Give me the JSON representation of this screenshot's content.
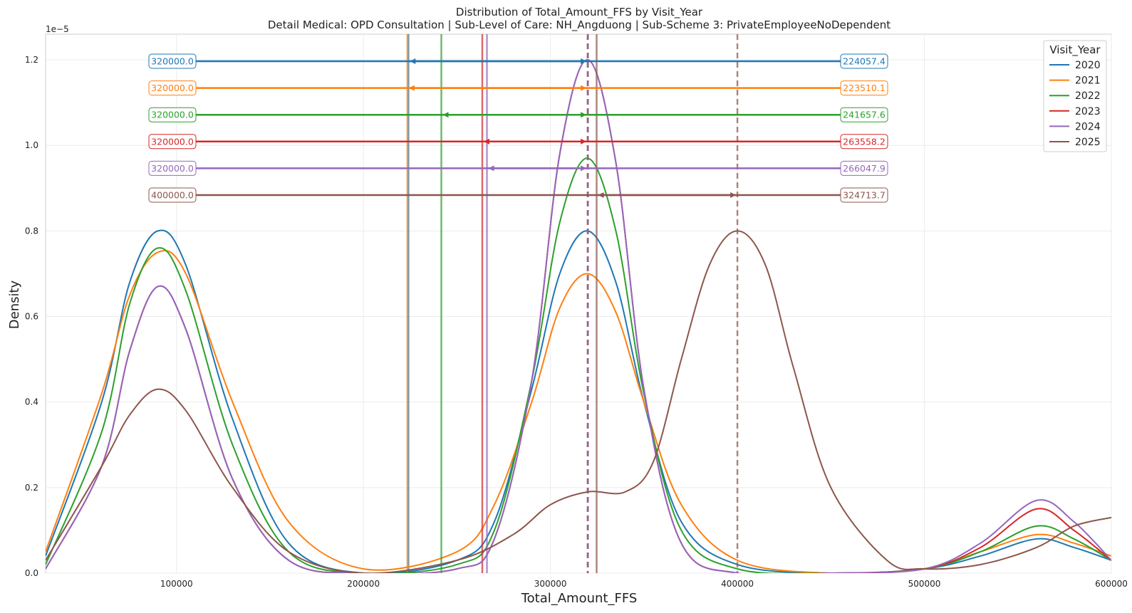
{
  "chart_data": {
    "type": "line",
    "title": "Distribution of Total_Amount_FFS by Visit_Year",
    "subtitle": "Detail Medical: OPD Consultation | Sub-Level of Care: NH_Angduong | Sub-Scheme 3: PrivateEmployeeNoDependent",
    "xlabel": "Total_Amount_FFS",
    "ylabel": "Density",
    "y_scale_label": "1e−5",
    "xlim": [
      30000,
      600000
    ],
    "ylim": [
      0,
      1.26
    ],
    "x_ticks": [
      100000,
      200000,
      300000,
      400000,
      500000,
      600000
    ],
    "x_tick_labels": [
      "100000",
      "200000",
      "300000",
      "400000",
      "500000",
      "600000"
    ],
    "y_ticks": [
      0.0,
      0.2,
      0.4,
      0.6,
      0.8,
      1.0,
      1.2
    ],
    "y_tick_labels": [
      "0.0",
      "0.2",
      "0.4",
      "0.6",
      "0.8",
      "1.0",
      "1.2"
    ],
    "grid": true,
    "legend": {
      "title": "Visit_Year",
      "placement": "top-right"
    },
    "series": [
      {
        "name": "2020",
        "color": "#1f77b4",
        "mean": 224057.4,
        "median": 320000.0,
        "mean_label": "224057.4",
        "median_label": "320000.0",
        "curve_x": [
          30000,
          60000,
          75000,
          90000,
          105000,
          130000,
          160000,
          200000,
          250000,
          270000,
          290000,
          305000,
          320000,
          335000,
          350000,
          370000,
          400000,
          450000,
          500000,
          530000,
          560000,
          580000,
          600000
        ],
        "curve_y": [
          0.04,
          0.4,
          0.68,
          0.8,
          0.72,
          0.36,
          0.07,
          0.0,
          0.03,
          0.12,
          0.43,
          0.7,
          0.8,
          0.68,
          0.4,
          0.12,
          0.02,
          0.0,
          0.01,
          0.04,
          0.08,
          0.06,
          0.03
        ]
      },
      {
        "name": "2021",
        "color": "#ff7f0e",
        "mean": 223510.1,
        "median": 320000.0,
        "mean_label": "223510.1",
        "median_label": "320000.0",
        "curve_x": [
          30000,
          60000,
          75000,
          90000,
          105000,
          130000,
          160000,
          200000,
          250000,
          270000,
          290000,
          305000,
          320000,
          335000,
          350000,
          370000,
          400000,
          450000,
          500000,
          530000,
          560000,
          580000,
          600000
        ],
        "curve_y": [
          0.05,
          0.42,
          0.65,
          0.75,
          0.7,
          0.4,
          0.12,
          0.01,
          0.05,
          0.16,
          0.4,
          0.62,
          0.7,
          0.61,
          0.4,
          0.16,
          0.03,
          0.0,
          0.01,
          0.05,
          0.09,
          0.07,
          0.04
        ]
      },
      {
        "name": "2022",
        "color": "#2ca02c",
        "mean": 241657.6,
        "median": 320000.0,
        "mean_label": "241657.6",
        "median_label": "320000.0",
        "curve_x": [
          30000,
          60000,
          75000,
          90000,
          105000,
          130000,
          160000,
          200000,
          250000,
          270000,
          290000,
          305000,
          320000,
          335000,
          350000,
          370000,
          400000,
          450000,
          500000,
          530000,
          560000,
          580000,
          600000
        ],
        "curve_y": [
          0.02,
          0.33,
          0.63,
          0.76,
          0.66,
          0.3,
          0.05,
          0.0,
          0.02,
          0.1,
          0.45,
          0.82,
          0.97,
          0.8,
          0.42,
          0.1,
          0.01,
          0.0,
          0.01,
          0.05,
          0.11,
          0.08,
          0.03
        ]
      },
      {
        "name": "2023",
        "color": "#d62728",
        "mean": 263558.2,
        "median": 320000.0,
        "mean_label": "263558.2",
        "median_label": "320000.0",
        "curve_x": [
          30000,
          60000,
          75000,
          90000,
          105000,
          130000,
          160000,
          200000,
          250000,
          270000,
          290000,
          305000,
          320000,
          335000,
          350000,
          370000,
          400000,
          450000,
          500000,
          530000,
          560000,
          580000,
          600000
        ],
        "curve_y": [
          0.01,
          0.25,
          0.52,
          0.67,
          0.57,
          0.22,
          0.03,
          0.0,
          0.01,
          0.08,
          0.45,
          0.98,
          1.2,
          0.96,
          0.43,
          0.07,
          0.0,
          0.0,
          0.01,
          0.06,
          0.15,
          0.1,
          0.03
        ]
      },
      {
        "name": "2024",
        "color": "#9467bd",
        "mean": 266047.9,
        "median": 320000.0,
        "mean_label": "266047.9",
        "median_label": "320000.0",
        "curve_x": [
          30000,
          60000,
          75000,
          90000,
          105000,
          130000,
          160000,
          200000,
          250000,
          270000,
          290000,
          305000,
          320000,
          335000,
          350000,
          370000,
          400000,
          450000,
          500000,
          530000,
          560000,
          580000,
          600000
        ],
        "curve_y": [
          0.01,
          0.25,
          0.52,
          0.67,
          0.57,
          0.22,
          0.03,
          0.0,
          0.01,
          0.08,
          0.45,
          0.98,
          1.2,
          0.96,
          0.43,
          0.07,
          0.0,
          0.0,
          0.01,
          0.07,
          0.17,
          0.12,
          0.03
        ]
      },
      {
        "name": "2025",
        "color": "#8c564b",
        "mean": 324713.7,
        "median": 400000.0,
        "mean_label": "324713.7",
        "median_label": "400000.0",
        "curve_x": [
          30000,
          60000,
          75000,
          90000,
          105000,
          130000,
          160000,
          200000,
          250000,
          280000,
          300000,
          320000,
          340000,
          355000,
          370000,
          385000,
          400000,
          415000,
          430000,
          450000,
          480000,
          500000,
          530000,
          560000,
          580000,
          600000
        ],
        "curve_y": [
          0.03,
          0.25,
          0.37,
          0.43,
          0.38,
          0.2,
          0.05,
          0.0,
          0.03,
          0.09,
          0.16,
          0.19,
          0.19,
          0.26,
          0.5,
          0.72,
          0.8,
          0.72,
          0.48,
          0.2,
          0.03,
          0.01,
          0.02,
          0.06,
          0.11,
          0.13
        ]
      }
    ]
  }
}
